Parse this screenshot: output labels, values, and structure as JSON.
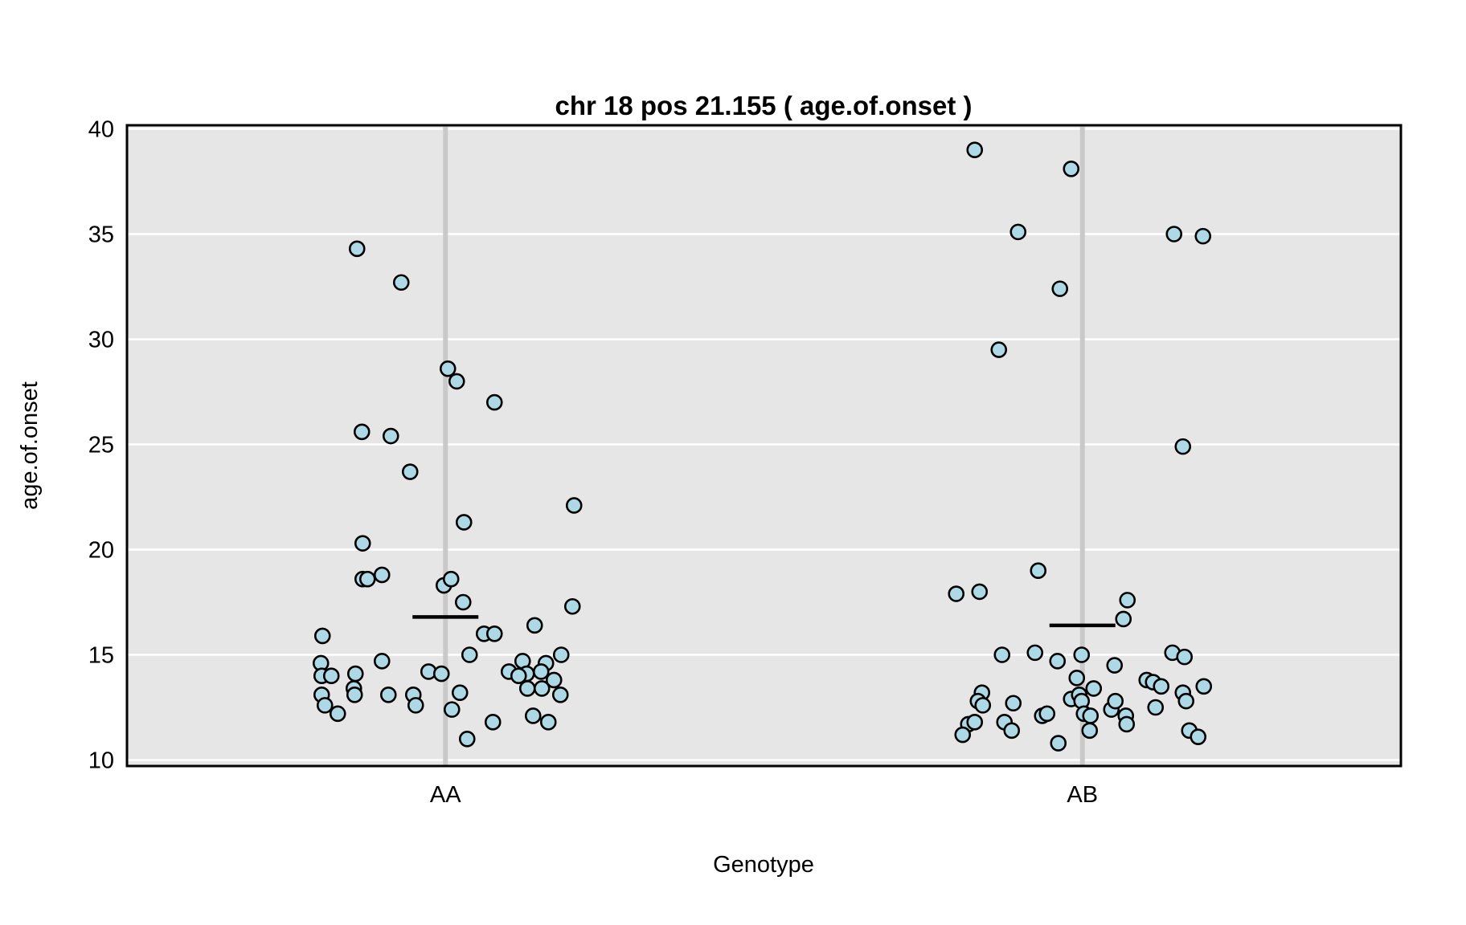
{
  "title": "chr 18 pos 21.155 ( age.of.onset )",
  "x_axis": {
    "label": "Genotype",
    "categories": [
      "AA",
      "AB"
    ]
  },
  "y_axis": {
    "label": "age.of.onset",
    "ticks": [
      40,
      35,
      30,
      25,
      20,
      15,
      10
    ]
  },
  "colors": {
    "plot_background": "#e6e6e6",
    "gridline": "#ffffff",
    "reference_line": "#c9c9c9",
    "plot_border": "#000000",
    "point_fill": "#add8e6",
    "point_stroke": "#000000",
    "mean_line": "#000000"
  },
  "chart_data": {
    "type": "scatter",
    "subtype": "jittered-strip-plot",
    "title": "chr 18 pos 21.155 ( age.of.onset )",
    "xlabel": "Genotype",
    "ylabel": "age.of.onset",
    "ylim": [
      10,
      40
    ],
    "yticks": [
      10,
      15,
      20,
      25,
      30,
      35,
      40
    ],
    "grid": "horizontal-white-on-gray",
    "categories": [
      "AA",
      "AB"
    ],
    "group_means": [
      16.8,
      16.4
    ],
    "x_offset_unit": "px-from-category-center",
    "series": [
      {
        "name": "AA",
        "points": [
          [
            -110,
            34.3
          ],
          [
            -55,
            32.7
          ],
          [
            3,
            28.6
          ],
          [
            14,
            28.0
          ],
          [
            61,
            27.0
          ],
          [
            -104,
            25.6
          ],
          [
            -68,
            25.4
          ],
          [
            -44,
            23.7
          ],
          [
            160,
            22.1
          ],
          [
            23,
            21.3
          ],
          [
            -103,
            20.3
          ],
          [
            -103,
            18.6
          ],
          [
            -97,
            18.6
          ],
          [
            -79,
            18.8
          ],
          [
            -2,
            18.3
          ],
          [
            7,
            18.6
          ],
          [
            22,
            17.5
          ],
          [
            158,
            17.3
          ],
          [
            111,
            16.4
          ],
          [
            48,
            16.0
          ],
          [
            61,
            16.0
          ],
          [
            -153,
            15.9
          ],
          [
            30,
            15.0
          ],
          [
            144,
            15.0
          ],
          [
            -155,
            14.6
          ],
          [
            -79,
            14.7
          ],
          [
            96,
            14.7
          ],
          [
            125,
            14.6
          ],
          [
            -21,
            14.2
          ],
          [
            79,
            14.2
          ],
          [
            119,
            14.2
          ],
          [
            -112,
            14.1
          ],
          [
            -5,
            14.1
          ],
          [
            101,
            14.1
          ],
          [
            -154,
            14.0
          ],
          [
            -142,
            14.0
          ],
          [
            91,
            14.0
          ],
          [
            135,
            13.8
          ],
          [
            -114,
            13.4
          ],
          [
            102,
            13.4
          ],
          [
            120,
            13.4
          ],
          [
            18,
            13.2
          ],
          [
            -154,
            13.1
          ],
          [
            -113,
            13.1
          ],
          [
            -71,
            13.1
          ],
          [
            -40,
            13.1
          ],
          [
            143,
            13.1
          ],
          [
            -150,
            12.6
          ],
          [
            -37,
            12.6
          ],
          [
            8,
            12.4
          ],
          [
            -134,
            12.2
          ],
          [
            109,
            12.1
          ],
          [
            59,
            11.8
          ],
          [
            128,
            11.8
          ],
          [
            27,
            11.0
          ]
        ]
      },
      {
        "name": "AB",
        "points": [
          [
            -134,
            39.0
          ],
          [
            -14,
            38.1
          ],
          [
            -80,
            35.1
          ],
          [
            114,
            35.0
          ],
          [
            150,
            34.9
          ],
          [
            -28,
            32.4
          ],
          [
            -104,
            29.5
          ],
          [
            125,
            24.9
          ],
          [
            -55,
            19.0
          ],
          [
            -157,
            17.9
          ],
          [
            -128,
            18.0
          ],
          [
            56,
            17.6
          ],
          [
            51,
            16.7
          ],
          [
            -100,
            15.0
          ],
          [
            -59,
            15.1
          ],
          [
            -31,
            14.7
          ],
          [
            -1,
            15.0
          ],
          [
            40,
            14.5
          ],
          [
            112,
            15.1
          ],
          [
            127,
            14.9
          ],
          [
            -7,
            13.9
          ],
          [
            14,
            13.4
          ],
          [
            -125,
            13.2
          ],
          [
            -130,
            12.8
          ],
          [
            -124,
            12.6
          ],
          [
            -86,
            12.7
          ],
          [
            -14,
            12.9
          ],
          [
            -4,
            13.1
          ],
          [
            -1,
            12.8
          ],
          [
            2,
            12.2
          ],
          [
            10,
            12.1
          ],
          [
            9,
            11.4
          ],
          [
            36,
            12.4
          ],
          [
            41,
            12.8
          ],
          [
            54,
            12.1
          ],
          [
            55,
            11.7
          ],
          [
            80,
            13.8
          ],
          [
            88,
            13.7
          ],
          [
            98,
            13.5
          ],
          [
            91,
            12.5
          ],
          [
            125,
            13.2
          ],
          [
            129,
            12.8
          ],
          [
            151,
            13.5
          ],
          [
            133,
            11.4
          ],
          [
            144,
            11.1
          ],
          [
            -142,
            11.7
          ],
          [
            -134,
            11.8
          ],
          [
            -149,
            11.2
          ],
          [
            -97,
            11.8
          ],
          [
            -88,
            11.4
          ],
          [
            -50,
            12.1
          ],
          [
            -44,
            12.2
          ],
          [
            -30,
            10.8
          ]
        ]
      }
    ]
  }
}
